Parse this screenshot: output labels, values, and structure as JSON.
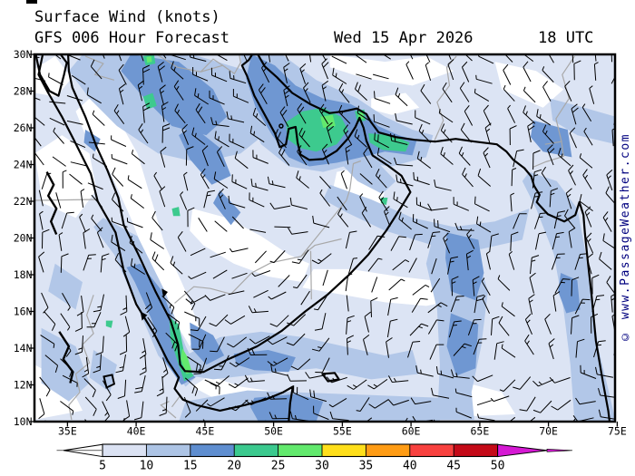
{
  "header": {
    "title": "Surface Wind (knots)",
    "model_line": "GFS 006 Hour Forecast",
    "date": "Wed 15 Apr 2026",
    "time": "18 UTC"
  },
  "watermark": "© www.PassageWeather.com",
  "map": {
    "lat_labels": [
      "30N",
      "28N",
      "26N",
      "24N",
      "22N",
      "20N",
      "18N",
      "16N",
      "14N",
      "12N",
      "10N"
    ],
    "lon_labels": [
      "35E",
      "40E",
      "45E",
      "50E",
      "55E",
      "60E",
      "65E",
      "70E",
      "75E"
    ]
  },
  "colorbar": {
    "tick_labels": [
      "5",
      "10",
      "15",
      "20",
      "25",
      "30",
      "35",
      "40",
      "45",
      "50"
    ],
    "segment_colors": [
      "#dbe2f3",
      "#adc4e5",
      "#5f8ed0",
      "#3bc98e",
      "#62e96d",
      "#ffdf1b",
      "#ff9c15",
      "#f8413f",
      "#c40a18"
    ],
    "under_color": "#ffffff",
    "over_color": "#d519d3"
  },
  "colors": {
    "map_calm": "#ffffff",
    "map_5_10": "#dce4f4",
    "map_10_15": "#b2c7e8",
    "map_15_20": "#6f97d2",
    "map_20_25": "#3dca8e",
    "map_25_30": "#63e96d",
    "coastline": "#000000",
    "border": "#a8a8a8",
    "watermark_text": "#00007f"
  }
}
